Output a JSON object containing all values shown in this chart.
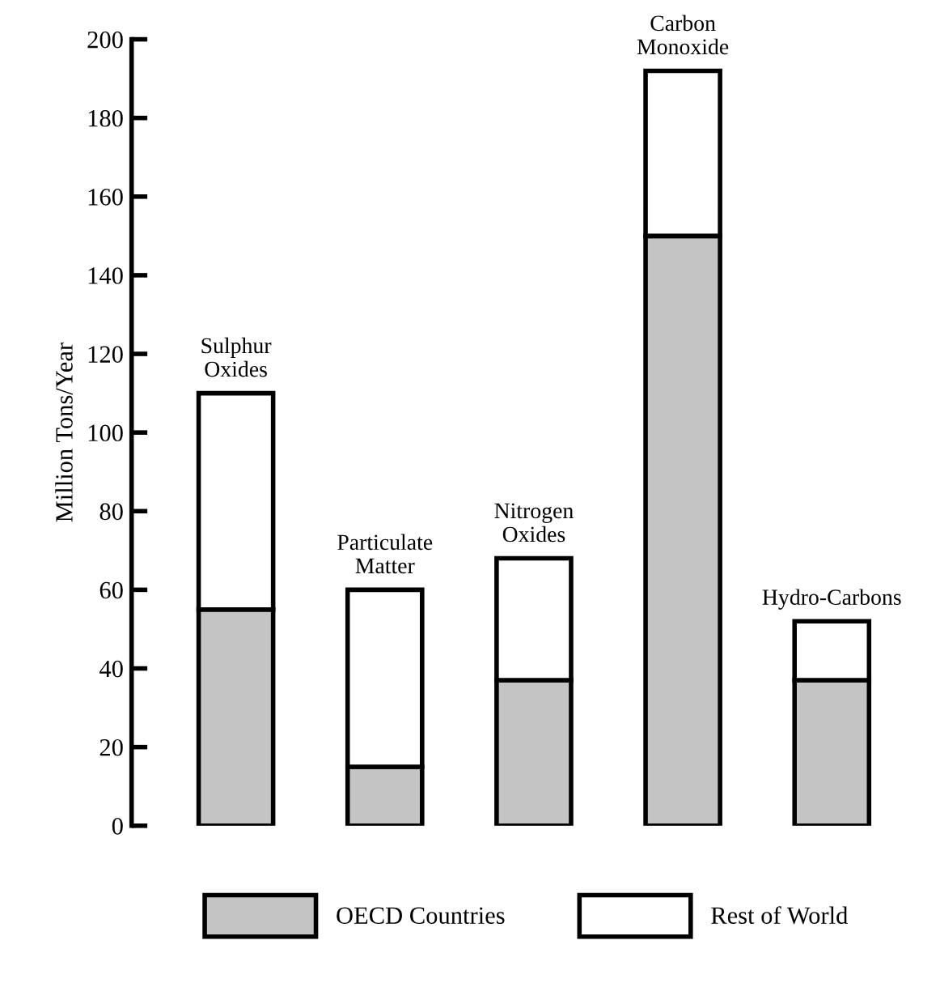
{
  "chart_data": {
    "type": "bar",
    "stacked": true,
    "ylabel": "Million Tons/Year",
    "categories": [
      "Sulphur Oxides",
      "Particulate Matter",
      "Nitrogen Oxides",
      "Carbon Monoxide",
      "Hydro-Carbons"
    ],
    "series": [
      {
        "name": "OECD Countries",
        "color": "#c4c4c4",
        "values": [
          55,
          15,
          37,
          150,
          37
        ]
      },
      {
        "name": "Rest of World",
        "color": "#ffffff",
        "values": [
          55,
          45,
          31,
          42,
          15
        ]
      }
    ],
    "ylim": [
      0,
      200
    ],
    "yticks": [
      0,
      20,
      40,
      60,
      80,
      100,
      120,
      140,
      160,
      180,
      200
    ],
    "grid": false,
    "legend": "bottom"
  }
}
